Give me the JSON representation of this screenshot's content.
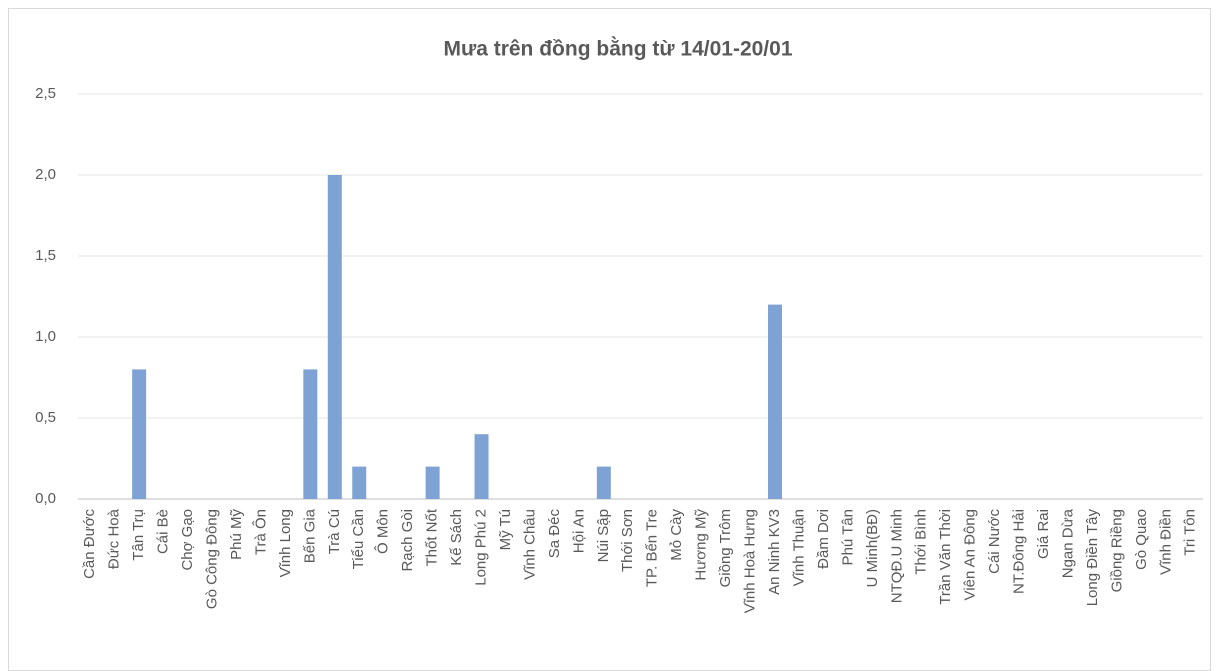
{
  "chart_data": {
    "type": "bar",
    "title": "Mưa trên đồng bằng từ 14/01-20/01",
    "categories": [
      "Cần Đước",
      "Đức Hoà",
      "Tân Trụ",
      "Cái Bè",
      "Chợ Gạo",
      "Gò Công Đông",
      "Phú Mỹ",
      "Trà Ôn",
      "Vĩnh Long",
      "Bến Gia",
      "Trà Cú",
      "Tiểu Cần",
      "Ô Môn",
      "Rạch Gòi",
      "Thốt Nốt",
      "Kế Sách",
      "Long Phú 2",
      "Mỹ Tú",
      "Vĩnh Châu",
      "Sa Đéc",
      "Hội An",
      "Núi Sập",
      "Thới Sơn",
      "TP. Bến Tre",
      "Mỏ Cày",
      "Hương Mỹ",
      "Giồng Trôm",
      "Vĩnh Hoà Hưng",
      "An Ninh KV3",
      "Vĩnh Thuận",
      "Đầm Dơi",
      "Phú Tân",
      "U Minh(BĐ)",
      "NTQĐ.U Minh",
      "Thới Bình",
      "Trần Văn Thời",
      "Viên An Đông",
      "Cái Nước",
      "NT.Đông Hải",
      "Giá Rai",
      "Ngan Dừa",
      "Long Điền Tây",
      "Giồng Riềng",
      "Gò Quao",
      "Vĩnh Điền",
      "Tri Tôn"
    ],
    "values": [
      0,
      0,
      0.8,
      0,
      0,
      0,
      0,
      0,
      0,
      0.8,
      2.0,
      0.2,
      0,
      0,
      0.2,
      0,
      0.4,
      0,
      0,
      0,
      0,
      0.2,
      0,
      0,
      0,
      0,
      0,
      0,
      1.2,
      0,
      0,
      0,
      0,
      0,
      0,
      0,
      0,
      0,
      0,
      0,
      0,
      0,
      0,
      0,
      0,
      0
    ],
    "color": "#7ea2d4",
    "ylim": [
      0,
      2.5
    ],
    "yticks": [
      {
        "value": 0,
        "label": "0,0"
      },
      {
        "value": 0.5,
        "label": "0,5"
      },
      {
        "value": 1,
        "label": "1,0"
      },
      {
        "value": 1.5,
        "label": "1,5"
      },
      {
        "value": 2,
        "label": "2,0"
      },
      {
        "value": 2.5,
        "label": "2,5"
      }
    ],
    "grid": true
  }
}
